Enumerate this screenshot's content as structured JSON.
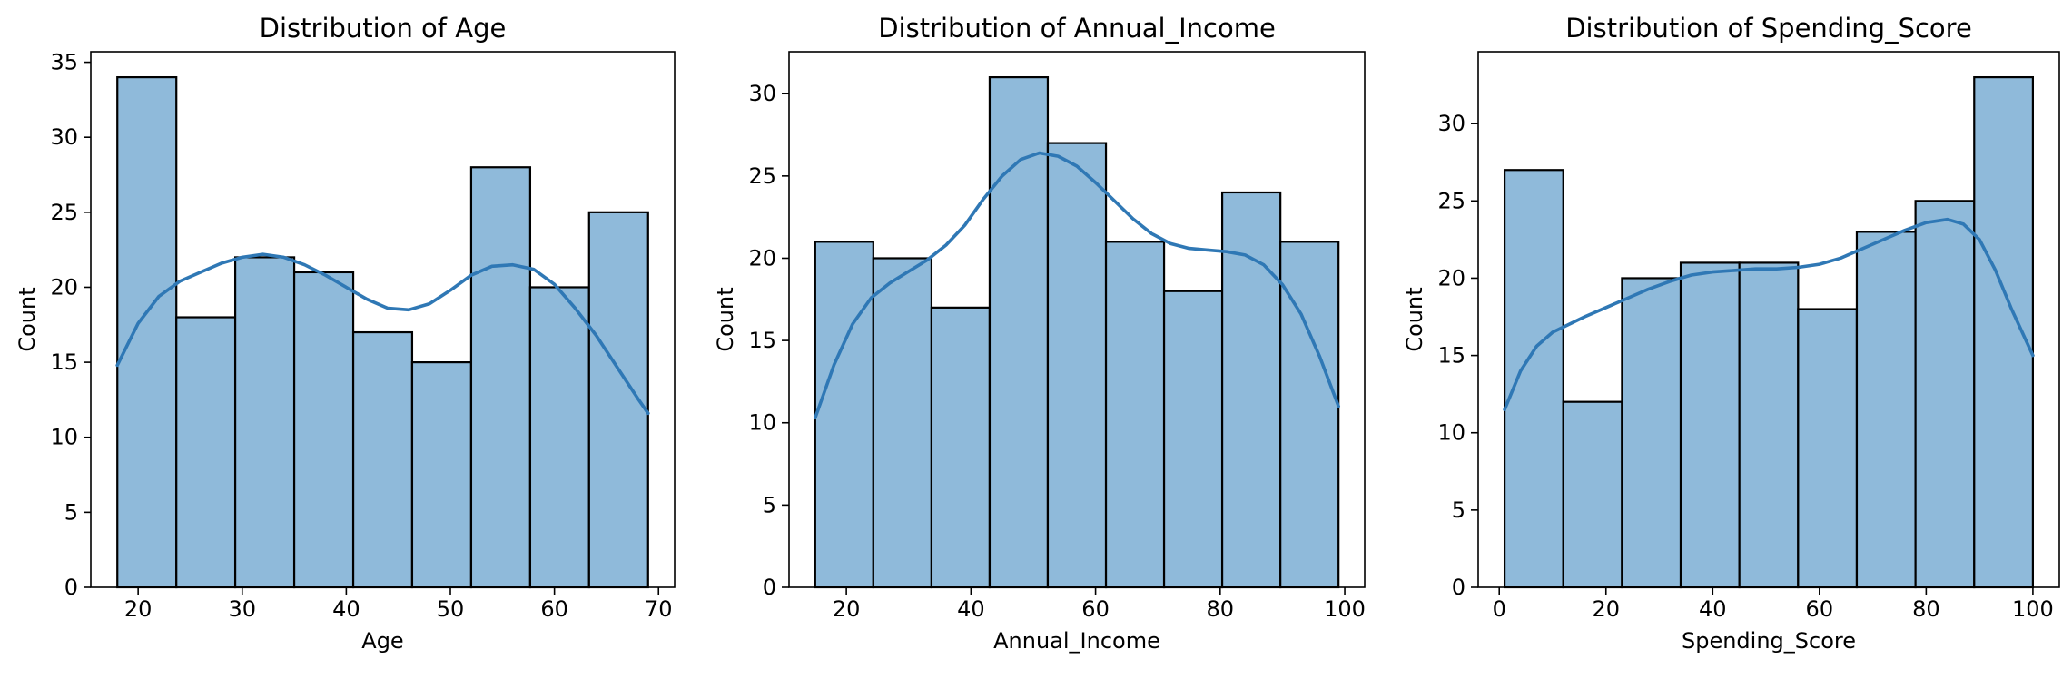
{
  "colors": {
    "bar_fill": "#8fbada",
    "kde_line": "#2f78b5",
    "edge": "#000000"
  },
  "chart_data": [
    {
      "type": "bar",
      "title": "Distribution of Age",
      "xlabel": "Age",
      "ylabel": "Count",
      "xlim": [
        15.45,
        71.55
      ],
      "ylim": [
        0,
        35.7
      ],
      "xticks": [
        20,
        30,
        40,
        50,
        60,
        70
      ],
      "yticks": [
        0,
        5,
        10,
        15,
        20,
        25,
        30,
        35
      ],
      "bin_edges": [
        18,
        23.67,
        29.33,
        35,
        40.67,
        46.33,
        52,
        57.67,
        63.33,
        69
      ],
      "values": [
        34,
        18,
        22,
        21,
        17,
        15,
        28,
        20,
        25
      ],
      "kde": {
        "x": [
          18,
          20,
          22,
          24,
          26,
          28,
          30,
          32,
          34,
          36,
          38,
          40,
          42,
          44,
          46,
          48,
          50,
          52,
          54,
          56,
          58,
          60,
          62,
          64,
          66,
          68,
          69
        ],
        "y": [
          14.8,
          17.6,
          19.4,
          20.4,
          21.0,
          21.6,
          22.0,
          22.2,
          22.0,
          21.5,
          20.8,
          20.0,
          19.2,
          18.6,
          18.5,
          18.9,
          19.8,
          20.8,
          21.4,
          21.5,
          21.2,
          20.2,
          18.6,
          16.8,
          14.7,
          12.6,
          11.6
        ]
      }
    },
    {
      "type": "bar",
      "title": "Distribution of Annual_Income",
      "xlabel": "Annual_Income",
      "ylabel": "Count",
      "xlim": [
        10.8,
        103.2
      ],
      "ylim": [
        0,
        32.55
      ],
      "xticks": [
        20,
        40,
        60,
        80,
        100
      ],
      "yticks": [
        0,
        5,
        10,
        15,
        20,
        25,
        30
      ],
      "bin_edges": [
        15,
        24.33,
        33.67,
        43,
        52.33,
        61.67,
        71,
        80.33,
        89.67,
        99
      ],
      "values": [
        21,
        20,
        17,
        31,
        27,
        21,
        18,
        24,
        21
      ],
      "kde": {
        "x": [
          15,
          18,
          21,
          24,
          27,
          30,
          33,
          36,
          39,
          42,
          45,
          48,
          51,
          54,
          57,
          60,
          63,
          66,
          69,
          72,
          75,
          78,
          81,
          84,
          87,
          90,
          93,
          96,
          99
        ],
        "y": [
          10.3,
          13.5,
          16.0,
          17.6,
          18.5,
          19.2,
          19.9,
          20.8,
          22.0,
          23.6,
          25.0,
          26.0,
          26.4,
          26.2,
          25.6,
          24.6,
          23.5,
          22.4,
          21.5,
          20.9,
          20.6,
          20.5,
          20.4,
          20.2,
          19.6,
          18.4,
          16.6,
          14.0,
          11.0
        ]
      }
    },
    {
      "type": "bar",
      "title": "Distribution of Spending_Score",
      "xlabel": "Spending_Score",
      "ylabel": "Count",
      "xlim": [
        -3.95,
        104.95
      ],
      "ylim": [
        0,
        34.65
      ],
      "xticks": [
        0,
        20,
        40,
        60,
        80,
        100
      ],
      "yticks": [
        0,
        5,
        10,
        15,
        20,
        25,
        30
      ],
      "bin_edges": [
        1,
        12,
        23,
        34,
        45,
        56,
        67,
        78,
        89,
        100
      ],
      "values": [
        27,
        12,
        20,
        21,
        21,
        18,
        23,
        25,
        33
      ],
      "kde": {
        "x": [
          1,
          4,
          7,
          10,
          13,
          16,
          20,
          24,
          28,
          32,
          36,
          40,
          44,
          48,
          52,
          56,
          60,
          64,
          68,
          72,
          76,
          80,
          84,
          87,
          90,
          93,
          96,
          100
        ],
        "y": [
          11.5,
          14.0,
          15.6,
          16.5,
          17.0,
          17.5,
          18.1,
          18.7,
          19.3,
          19.8,
          20.2,
          20.4,
          20.5,
          20.6,
          20.6,
          20.7,
          20.9,
          21.3,
          21.9,
          22.5,
          23.1,
          23.6,
          23.8,
          23.5,
          22.5,
          20.5,
          18.0,
          15.0
        ]
      }
    }
  ]
}
